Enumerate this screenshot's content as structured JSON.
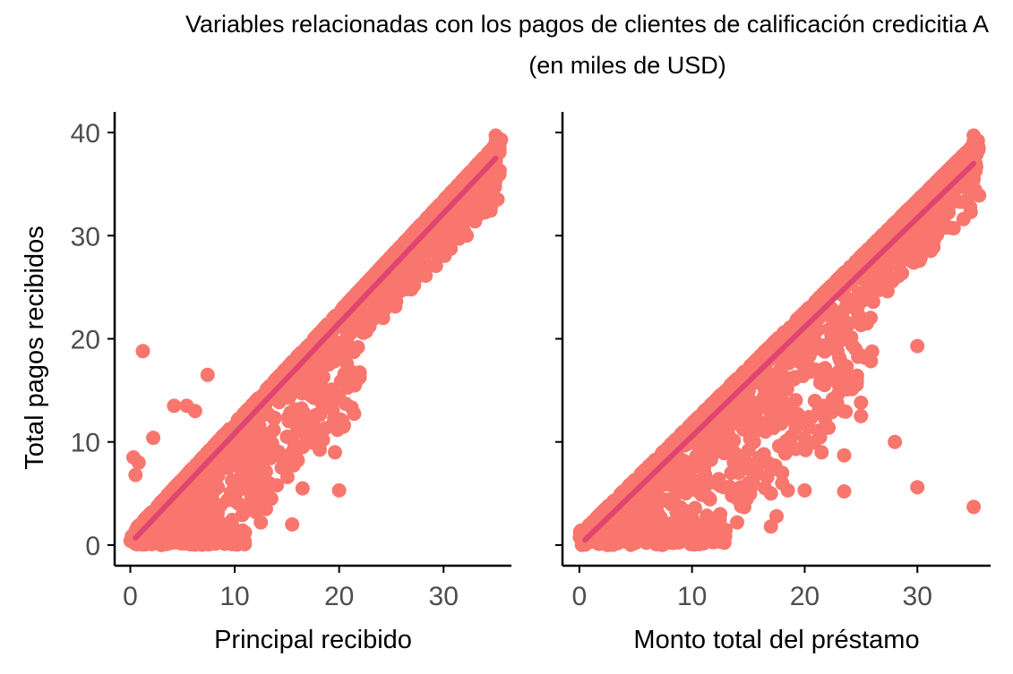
{
  "title": "Variables relacionadas con los pagos de clientes de calificación credicitia A",
  "subtitle": "(en miles de USD)",
  "colors": {
    "points": "#F8766D",
    "fit_line": "#E04470",
    "axis": "#000000",
    "tick_text": "#4D4D4D"
  },
  "chart_data": [
    {
      "type": "scatter",
      "xlabel": "Principal recibido",
      "ylabel": "Total pagos recibidos",
      "xlim": [
        -1.5,
        36.5
      ],
      "ylim": [
        -2,
        42
      ],
      "xticks": [
        0,
        10,
        20,
        30
      ],
      "yticks": [
        0,
        10,
        20,
        30,
        40
      ],
      "grid": false,
      "fit_line": {
        "x": [
          0.5,
          35
        ],
        "y": [
          0.7,
          37.5
        ]
      },
      "points": [
        [
          1.2,
          18.8
        ],
        [
          2.2,
          10.4
        ],
        [
          4.2,
          13.5
        ],
        [
          5.4,
          13.5
        ],
        [
          6.2,
          13.0
        ],
        [
          7.4,
          16.5
        ],
        [
          20.0,
          5.3
        ],
        [
          16.5,
          5.5
        ],
        [
          14.5,
          7.5
        ],
        [
          15.0,
          10.5
        ],
        [
          17.0,
          10.7
        ],
        [
          15.5,
          9.0
        ],
        [
          19.6,
          9.0
        ],
        [
          22.5,
          22.0
        ],
        [
          13.0,
          3.5
        ],
        [
          15.5,
          2.0
        ],
        [
          12.5,
          2.2
        ],
        [
          10.0,
          1.5
        ],
        [
          8.0,
          2.5
        ],
        [
          13.5,
          4.5
        ],
        [
          11.5,
          5.5
        ],
        [
          0.3,
          8.5
        ],
        [
          0.8,
          8.0
        ],
        [
          0.5,
          6.8
        ],
        [
          3.5,
          4.5
        ],
        [
          6.5,
          1.8
        ],
        [
          12.5,
          6.5
        ],
        [
          11.0,
          8.5
        ]
      ],
      "band": {
        "lower_offset": -9.0,
        "upper_offset": 1.0,
        "max_x": 35.5,
        "low_spread_x": 22,
        "y_min": 0.0
      },
      "top_cluster": {
        "x": 35,
        "y_min": 35.5,
        "y_max": 40
      }
    },
    {
      "type": "scatter",
      "xlabel": "Monto total del préstamo",
      "ylabel": "",
      "xlim": [
        -1.5,
        36.5
      ],
      "ylim": [
        -2,
        42
      ],
      "xticks": [
        0,
        10,
        20,
        30
      ],
      "yticks": [
        0,
        10,
        20,
        30,
        40
      ],
      "grid": false,
      "fit_line": {
        "x": [
          0.5,
          35
        ],
        "y": [
          0.5,
          37.0
        ]
      },
      "points": [
        [
          30.0,
          19.3
        ],
        [
          35.0,
          3.7
        ],
        [
          30.0,
          5.6
        ],
        [
          28.0,
          10.0
        ],
        [
          25.0,
          13.8
        ],
        [
          25.0,
          12.5
        ],
        [
          23.0,
          16.8
        ],
        [
          23.5,
          8.7
        ],
        [
          23.5,
          5.2
        ],
        [
          21.5,
          9.0
        ],
        [
          20.0,
          5.3
        ],
        [
          18.5,
          5.3
        ],
        [
          18.0,
          7.0
        ],
        [
          18.0,
          6.0
        ],
        [
          17.0,
          5.0
        ],
        [
          17.5,
          2.8
        ],
        [
          17.0,
          1.8
        ],
        [
          17.0,
          13.0
        ],
        [
          17.0,
          12.5
        ],
        [
          16.5,
          11.0
        ],
        [
          16.0,
          8.5
        ],
        [
          15.5,
          10.0
        ],
        [
          14.5,
          7.5
        ],
        [
          14.0,
          4.5
        ],
        [
          14.0,
          2.2
        ],
        [
          12.5,
          3.0
        ],
        [
          11.0,
          1.5
        ],
        [
          15.0,
          6.0
        ],
        [
          13.5,
          9.5
        ],
        [
          24.5,
          19.0
        ],
        [
          21.0,
          17.0
        ],
        [
          16.5,
          15.0
        ]
      ],
      "band": {
        "lower_offset": -11.0,
        "upper_offset": 1.0,
        "max_x": 35.5,
        "low_spread_x": 26,
        "y_min": 0.0
      },
      "top_cluster": {
        "x": 35,
        "y_min": 35.5,
        "y_max": 40
      }
    }
  ]
}
